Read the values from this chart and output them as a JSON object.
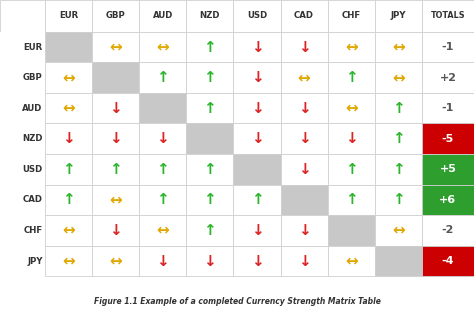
{
  "currencies": [
    "EUR",
    "GBP",
    "AUD",
    "NZD",
    "USD",
    "CAD",
    "CHF",
    "JPY"
  ],
  "totals": [
    -1,
    2,
    -1,
    -5,
    5,
    6,
    -2,
    -4
  ],
  "totals_bg": [
    "none",
    "none",
    "none",
    "#cc0000",
    "#2e9e2e",
    "#2e9e2e",
    "none",
    "#cc0000"
  ],
  "matrix": [
    [
      "gray",
      "yellow",
      "yellow",
      "green",
      "red",
      "red",
      "yellow",
      "yellow"
    ],
    [
      "yellow",
      "gray",
      "green",
      "green",
      "red",
      "yellow",
      "green",
      "yellow"
    ],
    [
      "yellow",
      "red",
      "gray",
      "green",
      "red",
      "red",
      "yellow",
      "green"
    ],
    [
      "red",
      "red",
      "red",
      "gray",
      "red",
      "red",
      "red",
      "green"
    ],
    [
      "green",
      "green",
      "green",
      "green",
      "gray",
      "red",
      "green",
      "green"
    ],
    [
      "green",
      "yellow",
      "green",
      "green",
      "green",
      "gray",
      "green",
      "green"
    ],
    [
      "yellow",
      "red",
      "yellow",
      "green",
      "red",
      "red",
      "gray",
      "yellow"
    ],
    [
      "yellow",
      "yellow",
      "red",
      "red",
      "red",
      "red",
      "yellow",
      "gray"
    ]
  ],
  "cell_gray": "#c8c8c8",
  "cell_white": "#ffffff",
  "grid_color": "#d0d0d0",
  "title": "Figure 1.1 Example of a completed Currency Strength Matrix Table",
  "arrow_up": "↑",
  "arrow_down": "↓",
  "arrow_side": "↔",
  "color_green": "#2ab52a",
  "color_red": "#dd2222",
  "color_yellow": "#e0a800",
  "header_text_color": "#333333",
  "row_label_color": "#333333",
  "fig_bg": "#ffffff",
  "caption_color": "#333333",
  "total_text_neutral": "#555555"
}
